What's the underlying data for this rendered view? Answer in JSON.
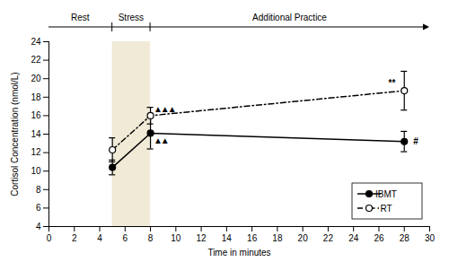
{
  "chart_data": {
    "type": "line",
    "x": [
      5,
      8,
      28
    ],
    "series": [
      {
        "name": "IBMT",
        "color": "black",
        "values": [
          10.4,
          14.1,
          13.2
        ],
        "yerr": [
          0.8,
          1.7,
          1.1
        ],
        "marker": "filled circle",
        "line_style": "solid"
      },
      {
        "name": "RT",
        "color": "black",
        "values": [
          12.3,
          16.0,
          18.7
        ],
        "yerr": [
          1.3,
          0.9,
          2.1
        ],
        "marker": "open circle",
        "line_style": "dashdot"
      }
    ],
    "xlim": [
      0,
      30
    ],
    "ylim": [
      4,
      24
    ],
    "xticks": [
      0,
      2,
      4,
      6,
      8,
      10,
      12,
      14,
      16,
      18,
      20,
      22,
      24,
      26,
      28,
      30
    ],
    "yticks": [
      4,
      6,
      8,
      10,
      12,
      14,
      16,
      18,
      20,
      22,
      24
    ],
    "xlabel": "Time in minutes",
    "ylabel": "Cortisol Concentration (nmol/L)",
    "grid": false,
    "legend": "lower right",
    "shaded_regions": [
      {
        "x0": 5,
        "x1": 8,
        "color": "#f0ead6"
      }
    ],
    "phases": [
      {
        "label": "Rest",
        "x0": 0,
        "x1": 5
      },
      {
        "label": "Stress",
        "x0": 5,
        "x1": 8
      },
      {
        "label": "Additional Practice",
        "x0": 8,
        "x1": 30
      }
    ],
    "annotations": [
      {
        "text": "▲",
        "x": 8.6,
        "y": 16.65,
        "align": "center"
      },
      {
        "text": "▲",
        "x": 9.15,
        "y": 16.65,
        "align": "center"
      },
      {
        "text": "▲",
        "x": 9.7,
        "y": 16.65,
        "align": "center"
      },
      {
        "text": "▲",
        "x": 8.6,
        "y": 13.3,
        "align": "center"
      },
      {
        "text": "▲",
        "x": 9.15,
        "y": 13.3,
        "align": "center"
      },
      {
        "text": "#",
        "x": 28.7,
        "y": 13.2,
        "align": "left"
      },
      {
        "text": "**",
        "x": 27.3,
        "y": 19.5,
        "align": "right"
      }
    ]
  }
}
